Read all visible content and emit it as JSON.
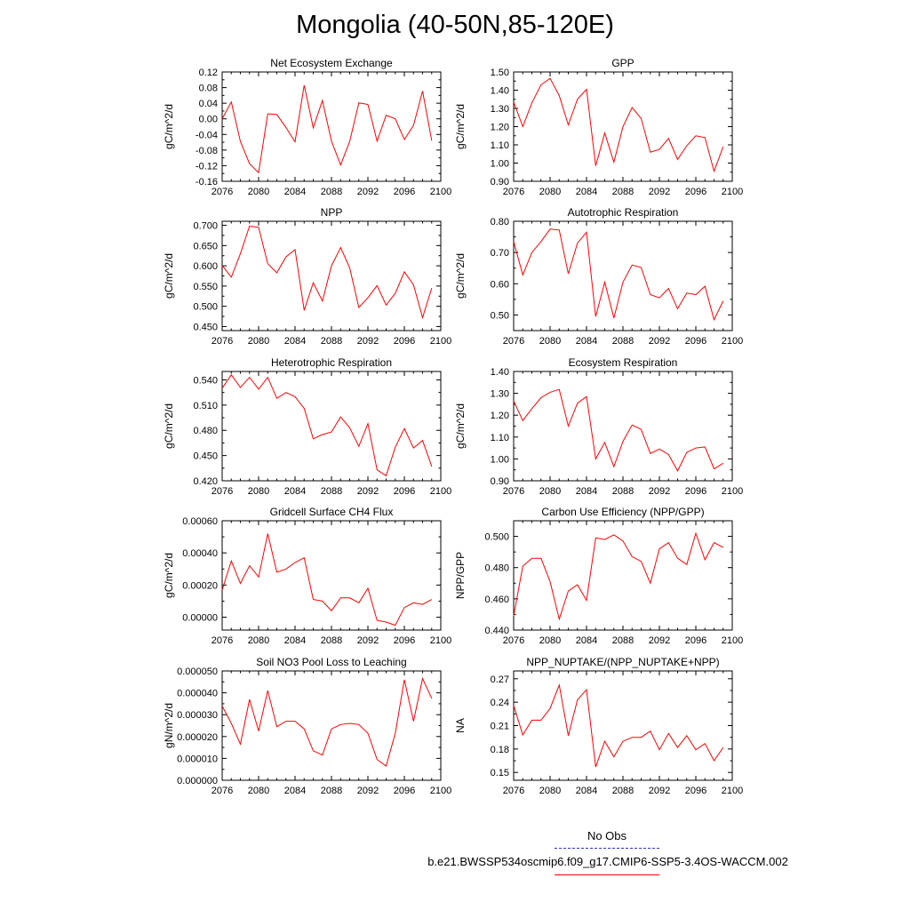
{
  "title": "Mongolia (40-50N,85-120E)",
  "legend": {
    "obs_label": "No Obs",
    "obs_color": "#3030c8",
    "model_label": "b.e21.BWSSP534oscmip6.f09_g17.CMIP6-SSP5-3.4OS-WACCM.002",
    "model_color": "#ff0000"
  },
  "chart_data": [
    {
      "type": "line",
      "title": "Net Ecosystem Exchange",
      "ylabel": "gC/m^2/d",
      "xlabel": "",
      "xlim": [
        2076,
        2100
      ],
      "xticks": [
        2076,
        2080,
        2084,
        2088,
        2092,
        2096,
        2100
      ],
      "xticklabels": [
        "2076",
        "2080",
        "2084",
        "2088",
        "2092",
        "2096",
        "2100"
      ],
      "ylim": [
        -0.16,
        0.12
      ],
      "yticks": [
        -0.16,
        -0.12,
        -0.08,
        -0.04,
        0.0,
        0.04,
        0.08,
        0.12
      ],
      "yticklabels": [
        "-0.16",
        "-0.12",
        "-0.08",
        "-0.04",
        "0.00",
        "0.04",
        "0.08",
        "0.12"
      ],
      "series": [
        {
          "name": "b.e21.BWSSP534oscmip6.f09_g17.CMIP6-SSP5-3.4OS-WACCM.002",
          "color": "#ff0000",
          "x": [
            2076,
            2077,
            2078,
            2079,
            2080,
            2081,
            2082,
            2083,
            2084,
            2085,
            2086,
            2087,
            2088,
            2089,
            2090,
            2091,
            2092,
            2093,
            2094,
            2095,
            2096,
            2097,
            2098,
            2099
          ],
          "values": [
            0.0,
            0.043,
            -0.058,
            -0.115,
            -0.138,
            0.013,
            0.011,
            -0.022,
            -0.059,
            0.086,
            -0.023,
            0.047,
            -0.057,
            -0.118,
            -0.058,
            0.041,
            0.037,
            -0.057,
            0.009,
            0.0,
            -0.053,
            -0.017,
            0.071,
            -0.056
          ]
        }
      ]
    },
    {
      "type": "line",
      "title": "GPP",
      "ylabel": "gC/m^2/d",
      "xlabel": "",
      "xlim": [
        2076,
        2100
      ],
      "xticks": [
        2076,
        2080,
        2084,
        2088,
        2092,
        2096,
        2100
      ],
      "xticklabels": [
        "2076",
        "2080",
        "2084",
        "2088",
        "2092",
        "2096",
        "2100"
      ],
      "ylim": [
        0.9,
        1.5
      ],
      "yticks": [
        0.9,
        1.0,
        1.1,
        1.2,
        1.3,
        1.4,
        1.5
      ],
      "yticklabels": [
        "0.90",
        "1.00",
        "1.10",
        "1.20",
        "1.30",
        "1.40",
        "1.50"
      ],
      "series": [
        {
          "name": "b.e21.BWSSP534oscmip6.f09_g17.CMIP6-SSP5-3.4OS-WACCM.002",
          "color": "#ff0000",
          "x": [
            2076,
            2077,
            2078,
            2079,
            2080,
            2081,
            2082,
            2083,
            2084,
            2085,
            2086,
            2087,
            2088,
            2089,
            2090,
            2091,
            2092,
            2093,
            2094,
            2095,
            2096,
            2097,
            2098,
            2099
          ],
          "values": [
            1.335,
            1.2,
            1.33,
            1.43,
            1.465,
            1.37,
            1.21,
            1.35,
            1.405,
            0.985,
            1.165,
            1.005,
            1.2,
            1.305,
            1.245,
            1.06,
            1.075,
            1.135,
            1.02,
            1.095,
            1.15,
            1.14,
            0.955,
            1.09
          ]
        }
      ]
    },
    {
      "type": "line",
      "title": "NPP",
      "ylabel": "gC/m^2/d",
      "xlabel": "",
      "xlim": [
        2076,
        2100
      ],
      "xticks": [
        2076,
        2080,
        2084,
        2088,
        2092,
        2096,
        2100
      ],
      "xticklabels": [
        "2076",
        "2080",
        "2084",
        "2088",
        "2092",
        "2096",
        "2100"
      ],
      "ylim": [
        0.44,
        0.71
      ],
      "yticks": [
        0.45,
        0.5,
        0.55,
        0.6,
        0.65,
        0.7
      ],
      "yticklabels": [
        "0.450",
        "0.500",
        "0.550",
        "0.600",
        "0.650",
        "0.700"
      ],
      "series": [
        {
          "name": "b.e21.BWSSP534oscmip6.f09_g17.CMIP6-SSP5-3.4OS-WACCM.002",
          "color": "#ff0000",
          "x": [
            2076,
            2077,
            2078,
            2079,
            2080,
            2081,
            2082,
            2083,
            2084,
            2085,
            2086,
            2087,
            2088,
            2089,
            2090,
            2091,
            2092,
            2093,
            2094,
            2095,
            2096,
            2097,
            2098,
            2099
          ],
          "values": [
            0.601,
            0.572,
            0.63,
            0.698,
            0.695,
            0.605,
            0.583,
            0.622,
            0.64,
            0.49,
            0.558,
            0.513,
            0.6,
            0.645,
            0.595,
            0.497,
            0.521,
            0.551,
            0.503,
            0.532,
            0.585,
            0.553,
            0.472,
            0.545
          ]
        }
      ]
    },
    {
      "type": "line",
      "title": "Autotrophic Respiration",
      "ylabel": "gC/m^2/d",
      "xlabel": "",
      "xlim": [
        2076,
        2100
      ],
      "xticks": [
        2076,
        2080,
        2084,
        2088,
        2092,
        2096,
        2100
      ],
      "xticklabels": [
        "2076",
        "2080",
        "2084",
        "2088",
        "2092",
        "2096",
        "2100"
      ],
      "ylim": [
        0.45,
        0.8
      ],
      "yticks": [
        0.5,
        0.6,
        0.7,
        0.8
      ],
      "yticklabels": [
        "0.50",
        "0.60",
        "0.70",
        "0.80"
      ],
      "series": [
        {
          "name": "b.e21.BWSSP534oscmip6.f09_g17.CMIP6-SSP5-3.4OS-WACCM.002",
          "color": "#ff0000",
          "x": [
            2076,
            2077,
            2078,
            2079,
            2080,
            2081,
            2082,
            2083,
            2084,
            2085,
            2086,
            2087,
            2088,
            2089,
            2090,
            2091,
            2092,
            2093,
            2094,
            2095,
            2096,
            2097,
            2098,
            2099
          ],
          "values": [
            0.735,
            0.628,
            0.7,
            0.735,
            0.775,
            0.772,
            0.632,
            0.73,
            0.765,
            0.495,
            0.605,
            0.49,
            0.605,
            0.66,
            0.652,
            0.565,
            0.555,
            0.585,
            0.52,
            0.57,
            0.565,
            0.592,
            0.485,
            0.545
          ]
        }
      ]
    },
    {
      "type": "line",
      "title": "Heterotrophic Respiration",
      "ylabel": "gC/m^2/d",
      "xlabel": "",
      "xlim": [
        2076,
        2100
      ],
      "xticks": [
        2076,
        2080,
        2084,
        2088,
        2092,
        2096,
        2100
      ],
      "xticklabels": [
        "2076",
        "2080",
        "2084",
        "2088",
        "2092",
        "2096",
        "2100"
      ],
      "ylim": [
        0.42,
        0.55
      ],
      "yticks": [
        0.42,
        0.45,
        0.48,
        0.51,
        0.54
      ],
      "yticklabels": [
        "0.420",
        "0.450",
        "0.480",
        "0.510",
        "0.540"
      ],
      "series": [
        {
          "name": "b.e21.BWSSP534oscmip6.f09_g17.CMIP6-SSP5-3.4OS-WACCM.002",
          "color": "#ff0000",
          "x": [
            2076,
            2077,
            2078,
            2079,
            2080,
            2081,
            2082,
            2083,
            2084,
            2085,
            2086,
            2087,
            2088,
            2089,
            2090,
            2091,
            2092,
            2093,
            2094,
            2095,
            2096,
            2097,
            2098,
            2099
          ],
          "values": [
            0.53,
            0.546,
            0.531,
            0.543,
            0.529,
            0.543,
            0.518,
            0.525,
            0.52,
            0.506,
            0.47,
            0.475,
            0.478,
            0.496,
            0.483,
            0.461,
            0.488,
            0.433,
            0.426,
            0.46,
            0.482,
            0.459,
            0.468,
            0.437
          ]
        }
      ]
    },
    {
      "type": "line",
      "title": "Ecosystem Respiration",
      "ylabel": "gC/m^2/d",
      "xlabel": "",
      "xlim": [
        2076,
        2100
      ],
      "xticks": [
        2076,
        2080,
        2084,
        2088,
        2092,
        2096,
        2100
      ],
      "xticklabels": [
        "2076",
        "2080",
        "2084",
        "2088",
        "2092",
        "2096",
        "2100"
      ],
      "ylim": [
        0.9,
        1.4
      ],
      "yticks": [
        0.9,
        1.0,
        1.1,
        1.2,
        1.3,
        1.4
      ],
      "yticklabels": [
        "0.90",
        "1.00",
        "1.10",
        "1.20",
        "1.30",
        "1.40"
      ],
      "series": [
        {
          "name": "b.e21.BWSSP534oscmip6.f09_g17.CMIP6-SSP5-3.4OS-WACCM.002",
          "color": "#ff0000",
          "x": [
            2076,
            2077,
            2078,
            2079,
            2080,
            2081,
            2082,
            2083,
            2084,
            2085,
            2086,
            2087,
            2088,
            2089,
            2090,
            2091,
            2092,
            2093,
            2094,
            2095,
            2096,
            2097,
            2098,
            2099
          ],
          "values": [
            1.265,
            1.175,
            1.23,
            1.28,
            1.305,
            1.318,
            1.15,
            1.255,
            1.285,
            1.0,
            1.075,
            0.965,
            1.08,
            1.155,
            1.135,
            1.025,
            1.045,
            1.02,
            0.945,
            1.03,
            1.05,
            1.055,
            0.955,
            0.98
          ]
        }
      ]
    },
    {
      "type": "line",
      "title": "Gridcell Surface CH4 Flux",
      "ylabel": "gC/m^2/d",
      "xlabel": "",
      "xlim": [
        2076,
        2100
      ],
      "xticks": [
        2076,
        2080,
        2084,
        2088,
        2092,
        2096,
        2100
      ],
      "xticklabels": [
        "2076",
        "2080",
        "2084",
        "2088",
        "2092",
        "2096",
        "2100"
      ],
      "ylim": [
        -8e-05,
        0.0006
      ],
      "yticks": [
        0.0,
        0.0002,
        0.0004,
        0.0006
      ],
      "yticklabels": [
        "0.00000",
        "0.00020",
        "0.00040",
        "0.00060"
      ],
      "series": [
        {
          "name": "b.e21.BWSSP534oscmip6.f09_g17.CMIP6-SSP5-3.4OS-WACCM.002",
          "color": "#ff0000",
          "x": [
            2076,
            2077,
            2078,
            2079,
            2080,
            2081,
            2082,
            2083,
            2084,
            2085,
            2086,
            2087,
            2088,
            2089,
            2090,
            2091,
            2092,
            2093,
            2094,
            2095,
            2096,
            2097,
            2098,
            2099
          ],
          "values": [
            0.00017,
            0.00035,
            0.00021,
            0.00032,
            0.00025,
            0.00052,
            0.00028,
            0.0003,
            0.00034,
            0.00037,
            0.00011,
            0.0001,
            4e-05,
            0.00012,
            0.00012,
            9e-05,
            0.00018,
            -2e-05,
            -3e-05,
            -5e-05,
            6e-05,
            9e-05,
            8e-05,
            0.00011
          ]
        }
      ]
    },
    {
      "type": "line",
      "title": "Carbon Use Efficiency (NPP/GPP)",
      "ylabel": "NPP/GPP",
      "xlabel": "",
      "xlim": [
        2076,
        2100
      ],
      "xticks": [
        2076,
        2080,
        2084,
        2088,
        2092,
        2096,
        2100
      ],
      "xticklabels": [
        "2076",
        "2080",
        "2084",
        "2088",
        "2092",
        "2096",
        "2100"
      ],
      "ylim": [
        0.44,
        0.51
      ],
      "yticks": [
        0.44,
        0.46,
        0.48,
        0.5
      ],
      "yticklabels": [
        "0.440",
        "0.460",
        "0.480",
        "0.500"
      ],
      "series": [
        {
          "name": "b.e21.BWSSP534oscmip6.f09_g17.CMIP6-SSP5-3.4OS-WACCM.002",
          "color": "#ff0000",
          "x": [
            2076,
            2077,
            2078,
            2079,
            2080,
            2081,
            2082,
            2083,
            2084,
            2085,
            2086,
            2087,
            2088,
            2089,
            2090,
            2091,
            2092,
            2093,
            2094,
            2095,
            2096,
            2097,
            2098,
            2099
          ],
          "values": [
            0.449,
            0.481,
            0.486,
            0.486,
            0.471,
            0.447,
            0.465,
            0.469,
            0.459,
            0.499,
            0.498,
            0.501,
            0.497,
            0.487,
            0.484,
            0.47,
            0.492,
            0.496,
            0.486,
            0.482,
            0.502,
            0.485,
            0.496,
            0.493
          ]
        }
      ]
    },
    {
      "type": "line",
      "title": "Soil NO3 Pool Loss to Leaching",
      "ylabel": "gN/m^2/d",
      "xlabel": "",
      "xlim": [
        2076,
        2100
      ],
      "xticks": [
        2076,
        2080,
        2084,
        2088,
        2092,
        2096,
        2100
      ],
      "xticklabels": [
        "2076",
        "2080",
        "2084",
        "2088",
        "2092",
        "2096",
        "2100"
      ],
      "ylim": [
        0.0,
        5e-05
      ],
      "yticks": [
        0.0,
        1e-05,
        2e-05,
        3e-05,
        4e-05,
        5e-05
      ],
      "yticklabels": [
        "0.000000",
        "0.000010",
        "0.000020",
        "0.000030",
        "0.000040",
        "0.000050"
      ],
      "series": [
        {
          "name": "b.e21.BWSSP534oscmip6.f09_g17.CMIP6-SSP5-3.4OS-WACCM.002",
          "color": "#ff0000",
          "x": [
            2076,
            2077,
            2078,
            2079,
            2080,
            2081,
            2082,
            2083,
            2084,
            2085,
            2086,
            2087,
            2088,
            2089,
            2090,
            2091,
            2092,
            2093,
            2094,
            2095,
            2096,
            2097,
            2098,
            2099
          ],
          "values": [
            3.4e-05,
            2.6e-05,
            1.65e-05,
            3.7e-05,
            2.25e-05,
            4.1e-05,
            2.45e-05,
            2.7e-05,
            2.7e-05,
            2.35e-05,
            1.35e-05,
            1.15e-05,
            2.35e-05,
            2.55e-05,
            2.6e-05,
            2.55e-05,
            2.15e-05,
            9.5e-06,
            6.5e-06,
            2.15e-05,
            4.6e-05,
            2.7e-05,
            4.65e-05,
            3.75e-05
          ]
        }
      ]
    },
    {
      "type": "line",
      "title": "NPP_NUPTAKE/(NPP_NUPTAKE+NPP)",
      "ylabel": "NA",
      "xlabel": "",
      "xlim": [
        2076,
        2100
      ],
      "xticks": [
        2076,
        2080,
        2084,
        2088,
        2092,
        2096,
        2100
      ],
      "xticklabels": [
        "2076",
        "2080",
        "2084",
        "2088",
        "2092",
        "2096",
        "2100"
      ],
      "ylim": [
        0.14,
        0.28
      ],
      "yticks": [
        0.15,
        0.18,
        0.21,
        0.24,
        0.27
      ],
      "yticklabels": [
        "0.15",
        "0.18",
        "0.21",
        "0.24",
        "0.27"
      ],
      "series": [
        {
          "name": "b.e21.BWSSP534oscmip6.f09_g17.CMIP6-SSP5-3.4OS-WACCM.002",
          "color": "#ff0000",
          "x": [
            2076,
            2077,
            2078,
            2079,
            2080,
            2081,
            2082,
            2083,
            2084,
            2085,
            2086,
            2087,
            2088,
            2089,
            2090,
            2091,
            2092,
            2093,
            2094,
            2095,
            2096,
            2097,
            2098,
            2099
          ],
          "values": [
            0.236,
            0.198,
            0.217,
            0.217,
            0.232,
            0.262,
            0.197,
            0.243,
            0.256,
            0.157,
            0.19,
            0.17,
            0.19,
            0.195,
            0.195,
            0.203,
            0.179,
            0.2,
            0.182,
            0.197,
            0.179,
            0.187,
            0.165,
            0.182
          ]
        }
      ]
    }
  ]
}
